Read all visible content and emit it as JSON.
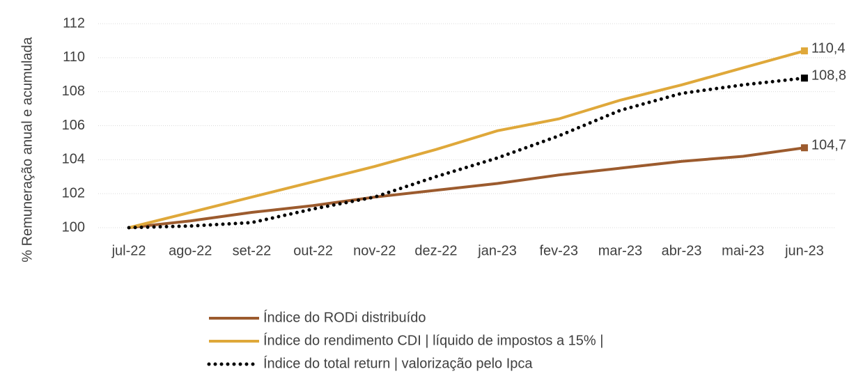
{
  "chart_data": {
    "type": "line",
    "y_label": "% Remuneração  anual e acumulada",
    "categories": [
      "jul-22",
      "ago-22",
      "set-22",
      "out-22",
      "nov-22",
      "dez-22",
      "jan-23",
      "fev-23",
      "mar-23",
      "abr-23",
      "mai-23",
      "jun-23"
    ],
    "series": [
      {
        "name": "Índice do RODi distribuído",
        "color": "#9c5b2e",
        "style": "solid",
        "values": [
          100,
          100.4,
          100.9,
          101.3,
          101.8,
          102.2,
          102.6,
          103.1,
          103.5,
          103.9,
          104.2,
          104.7
        ],
        "value_labels": [
          null,
          null,
          null,
          null,
          null,
          null,
          null,
          null,
          null,
          null,
          null,
          "104,7"
        ]
      },
      {
        "name": "Índice do rendimento CDI | líquido de impostos a 15% |",
        "color": "#dfa83a",
        "style": "solid",
        "values": [
          100,
          100.9,
          101.8,
          102.7,
          103.6,
          104.6,
          105.7,
          106.4,
          107.5,
          108.4,
          109.4,
          110.4
        ],
        "value_labels": [
          null,
          null,
          null,
          null,
          null,
          null,
          null,
          null,
          null,
          null,
          null,
          "110,4"
        ]
      },
      {
        "name": "Índice do total return | valorização pelo Ipca",
        "color": "#000000",
        "style": "dotted",
        "values": [
          100,
          100.1,
          100.3,
          101.1,
          101.8,
          103.0,
          104.1,
          105.4,
          106.9,
          107.9,
          108.4,
          108.8
        ],
        "value_labels": [
          null,
          null,
          null,
          null,
          null,
          null,
          null,
          null,
          null,
          null,
          null,
          "108,8"
        ]
      }
    ],
    "ylim": [
      100,
      112
    ],
    "yticks": [
      100,
      102,
      104,
      106,
      108,
      110,
      112
    ],
    "grid": true,
    "legend": "bottom"
  }
}
